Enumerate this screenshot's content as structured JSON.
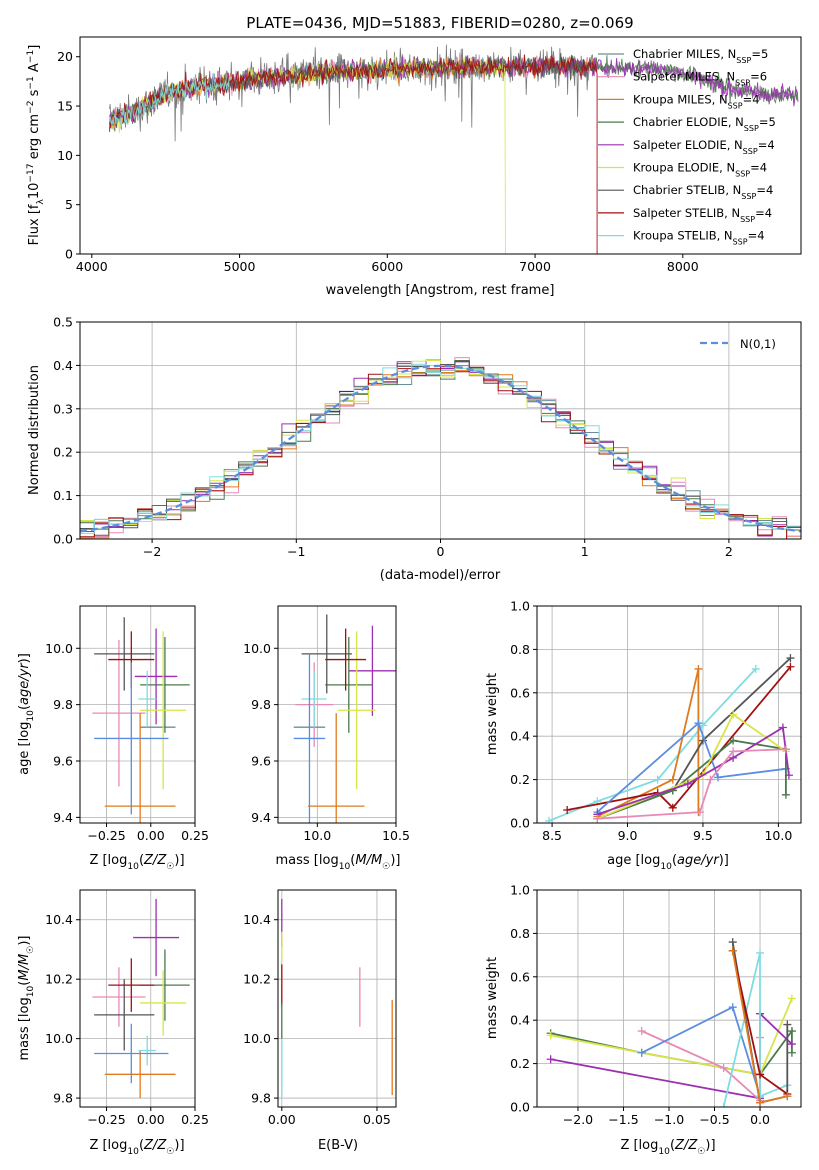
{
  "figure_title": "PLATE=0436, MJD=51883, FIBERID=0280, z=0.069",
  "colors": {
    "Chabrier MILES": "#6a8f9a",
    "Salpeter MILES": "#e88ab5",
    "Kroupa MILES": "#e07a1f",
    "Chabrier ELODIE": "#4a7a4a",
    "Salpeter ELODIE": "#9b30b0",
    "Kroupa ELODIE": "#d8e54a",
    "Chabrier STELIB": "#555555",
    "Salpeter STELIB": "#a01010",
    "Kroupa STELIB": "#7fdce0",
    "extra": "#5b8ee0",
    "normal": "#5b8ee0"
  },
  "chart_data": [
    {
      "id": "spectrum",
      "type": "line",
      "title": "PLATE=0436, MJD=51883, FIBERID=0280, z=0.069",
      "xlabel": "wavelength [Angstrom, rest frame]",
      "ylabel": "Flux [f_λ 10^-17 erg cm^-2 s^-1 A^-1]",
      "xlim": [
        3920,
        8800
      ],
      "ylim": [
        0,
        22
      ],
      "xticks": [
        4000,
        5000,
        6000,
        7000,
        8000
      ],
      "yticks": [
        0,
        5,
        10,
        15,
        20
      ],
      "legend_position": "right",
      "legend": [
        {
          "base": "Chabrier MILES",
          "n": "5"
        },
        {
          "base": "Salpeter MILES",
          "n": "6"
        },
        {
          "base": "Kroupa MILES",
          "n": "4"
        },
        {
          "base": "Chabrier ELODIE",
          "n": "5"
        },
        {
          "base": "Salpeter ELODIE",
          "n": "4"
        },
        {
          "base": "Kroupa ELODIE",
          "n": "4"
        },
        {
          "base": "Chabrier STELIB",
          "n": "4"
        },
        {
          "base": "Salpeter STELIB",
          "n": "4"
        },
        {
          "base": "Kroupa STELIB",
          "n": "4"
        }
      ],
      "continuum": {
        "x": [
          4120,
          4300,
          4500,
          4700,
          4900,
          5100,
          5300,
          5500,
          5700,
          5900,
          6100,
          6300,
          6500,
          6700,
          6900,
          7100,
          7300,
          7500,
          7700,
          7900,
          8100,
          8300,
          8500,
          8780
        ],
        "y": [
          13.5,
          14.5,
          16.3,
          17.0,
          17.3,
          17.8,
          18.0,
          18.3,
          18.5,
          18.6,
          18.8,
          18.9,
          19.0,
          19.0,
          19.0,
          19.1,
          19.0,
          18.9,
          18.9,
          18.7,
          18.0,
          16.8,
          16.3,
          16.0
        ]
      },
      "ranges": {
        "data": [
          4120,
          8780
        ],
        "Salpeter MILES cutoff": 7420,
        "Kroupa ELODIE cutoff": 6800
      }
    },
    {
      "id": "residual_hist",
      "type": "line",
      "xlabel": "(data-model)/error",
      "ylabel": "Normed distribution",
      "xlim": [
        -2.5,
        2.5
      ],
      "ylim": [
        0,
        0.5
      ],
      "xticks": [
        -2,
        -1,
        0,
        1,
        2
      ],
      "yticks": [
        0.0,
        0.1,
        0.2,
        0.3,
        0.4,
        0.5
      ],
      "grid": true,
      "legend_position": "top-right",
      "reference": {
        "name": "N(0,1)",
        "mean": 0,
        "sigma": 1
      },
      "bin_width": 0.1
    },
    {
      "id": "age_vs_Z",
      "type": "scatter",
      "xlabel": "Z [log10(Z/Z☉)]",
      "ylabel": "age [log10(age/yr)]",
      "xlim": [
        -0.4,
        0.25
      ],
      "ylim": [
        9.38,
        10.15
      ],
      "xticks": [
        -0.25,
        0.0,
        0.25
      ],
      "yticks": [
        9.4,
        9.6,
        9.8,
        10.0
      ],
      "grid": true,
      "points": [
        {
          "series": "Chabrier MILES",
          "x": 0.04,
          "y": 9.72,
          "xerr": 0.1,
          "yerr": 0.0
        },
        {
          "series": "Salpeter MILES",
          "x": -0.18,
          "y": 9.77,
          "xerr": 0.15,
          "yerr": 0.26
        },
        {
          "series": "Kroupa MILES",
          "x": -0.06,
          "y": 9.44,
          "xerr": 0.2,
          "yerr": 0.33
        },
        {
          "series": "Chabrier ELODIE",
          "x": 0.08,
          "y": 9.87,
          "xerr": 0.14,
          "yerr": 0.17
        },
        {
          "series": "Salpeter ELODIE",
          "x": 0.03,
          "y": 9.9,
          "xerr": 0.12,
          "yerr": 0.17
        },
        {
          "series": "Kroupa ELODIE",
          "x": 0.07,
          "y": 9.78,
          "xerr": 0.13,
          "yerr": 0.28
        },
        {
          "series": "Chabrier STELIB",
          "x": -0.15,
          "y": 9.98,
          "xerr": 0.17,
          "yerr": 0.13
        },
        {
          "series": "Salpeter STELIB",
          "x": -0.11,
          "y": 9.96,
          "xerr": 0.13,
          "yerr": 0.1
        },
        {
          "series": "Kroupa STELIB",
          "x": -0.02,
          "y": 9.82,
          "xerr": 0.05,
          "yerr": 0.1
        },
        {
          "series": "extra",
          "x": -0.11,
          "y": 9.68,
          "xerr": 0.21,
          "yerr": 0.27
        }
      ]
    },
    {
      "id": "age_vs_mass",
      "type": "scatter",
      "xlabel": "mass [log10(M/M☉)]",
      "ylabel": "",
      "xlim": [
        9.75,
        10.5
      ],
      "ylim": [
        9.38,
        10.15
      ],
      "xticks": [
        10.0,
        10.5
      ],
      "xticklabels": [
        "10.0",
        "10.5"
      ],
      "yticks": [
        9.4,
        9.6,
        9.8,
        10.0
      ],
      "grid": true,
      "points": [
        {
          "series": "Chabrier MILES",
          "x": 9.95,
          "y": 9.72,
          "xerr": 0.1,
          "yerr": 0.0
        },
        {
          "series": "Salpeter MILES",
          "x": 9.98,
          "y": 9.8,
          "xerr": 0.12,
          "yerr": 0.15
        },
        {
          "series": "Kroupa MILES",
          "x": 10.12,
          "y": 9.44,
          "xerr": 0.18,
          "yerr": 0.33
        },
        {
          "series": "Chabrier ELODIE",
          "x": 10.2,
          "y": 9.87,
          "xerr": 0.15,
          "yerr": 0.17
        },
        {
          "series": "Salpeter ELODIE",
          "x": 10.35,
          "y": 9.92,
          "xerr": 0.15,
          "yerr": 0.16
        },
        {
          "series": "Kroupa ELODIE",
          "x": 10.25,
          "y": 9.78,
          "xerr": 0.12,
          "yerr": 0.28
        },
        {
          "series": "Chabrier STELIB",
          "x": 10.06,
          "y": 9.98,
          "xerr": 0.16,
          "yerr": 0.14
        },
        {
          "series": "Salpeter STELIB",
          "x": 10.18,
          "y": 9.96,
          "xerr": 0.13,
          "yerr": 0.11
        },
        {
          "series": "Kroupa STELIB",
          "x": 9.98,
          "y": 9.82,
          "xerr": 0.08,
          "yerr": 0.1
        },
        {
          "series": "extra",
          "x": 9.95,
          "y": 9.68,
          "xerr": 0.1,
          "yerr": 0.3
        }
      ]
    },
    {
      "id": "mass_weight_vs_age",
      "type": "line",
      "xlabel": "age [log10(age/yr)]",
      "ylabel": "mass weight",
      "xlim": [
        8.4,
        10.15
      ],
      "ylim": [
        0,
        1
      ],
      "xticks": [
        8.5,
        9.0,
        9.5,
        10.0
      ],
      "yticks": [
        0.0,
        0.2,
        0.4,
        0.6,
        0.8,
        1.0
      ],
      "grid": true,
      "series": [
        {
          "name": "Kroupa STELIB",
          "x": [
            8.48,
            8.8,
            9.2,
            9.5,
            9.85
          ],
          "y": [
            0.01,
            0.1,
            0.2,
            0.45,
            0.71
          ]
        },
        {
          "name": "Kroupa MILES",
          "x": [
            8.8,
            9.3,
            9.47,
            9.47
          ],
          "y": [
            0.03,
            0.2,
            0.71,
            0.05
          ]
        },
        {
          "name": "Chabrier STELIB",
          "x": [
            8.8,
            9.3,
            9.5,
            10.08
          ],
          "y": [
            0.02,
            0.15,
            0.38,
            0.76
          ]
        },
        {
          "name": "Salpeter STELIB",
          "x": [
            8.6,
            9.2,
            9.3,
            10.08
          ],
          "y": [
            0.06,
            0.14,
            0.07,
            0.72
          ]
        },
        {
          "name": "extra",
          "x": [
            8.8,
            9.47,
            9.6,
            10.05
          ],
          "y": [
            0.05,
            0.46,
            0.21,
            0.25
          ]
        },
        {
          "name": "Chabrier ELODIE",
          "x": [
            8.8,
            9.3,
            9.7,
            10.05,
            10.05
          ],
          "y": [
            0.02,
            0.15,
            0.38,
            0.34,
            0.13
          ]
        },
        {
          "name": "Kroupa ELODIE",
          "x": [
            8.8,
            9.5,
            9.7,
            10.05
          ],
          "y": [
            0.02,
            0.22,
            0.5,
            0.33
          ]
        },
        {
          "name": "Salpeter ELODIE",
          "x": [
            8.8,
            9.4,
            9.7,
            10.03,
            10.07
          ],
          "y": [
            0.04,
            0.18,
            0.3,
            0.44,
            0.22
          ]
        },
        {
          "name": "Salpeter MILES",
          "x": [
            8.8,
            9.48,
            9.55,
            9.7,
            10.05
          ],
          "y": [
            0.02,
            0.05,
            0.2,
            0.33,
            0.34
          ]
        }
      ]
    },
    {
      "id": "mass_vs_Z",
      "type": "scatter",
      "xlabel": "Z [log10(Z/Z☉)]",
      "ylabel": "mass [log10(M/M☉)]",
      "xlim": [
        -0.4,
        0.25
      ],
      "ylim": [
        9.77,
        10.5
      ],
      "xticks": [
        -0.25,
        0.0,
        0.25
      ],
      "yticks": [
        9.8,
        10.0,
        10.2,
        10.4
      ],
      "grid": true,
      "points": [
        {
          "series": "Salpeter MILES",
          "x": -0.18,
          "y": 10.14,
          "xerr": 0.15,
          "yerr": 0.1
        },
        {
          "series": "Kroupa MILES",
          "x": -0.06,
          "y": 9.88,
          "xerr": 0.2,
          "yerr": 0.08
        },
        {
          "series": "Chabrier ELODIE",
          "x": 0.08,
          "y": 10.18,
          "xerr": 0.14,
          "yerr": 0.12
        },
        {
          "series": "Salpeter ELODIE",
          "x": 0.03,
          "y": 10.34,
          "xerr": 0.13,
          "yerr": 0.13
        },
        {
          "series": "Kroupa ELODIE",
          "x": 0.07,
          "y": 10.12,
          "xerr": 0.13,
          "yerr": 0.11
        },
        {
          "series": "Chabrier STELIB",
          "x": -0.15,
          "y": 10.08,
          "xerr": 0.17,
          "yerr": 0.12
        },
        {
          "series": "Salpeter STELIB",
          "x": -0.11,
          "y": 10.18,
          "xerr": 0.13,
          "yerr": 0.09
        },
        {
          "series": "Kroupa STELIB",
          "x": -0.02,
          "y": 9.96,
          "xerr": 0.05,
          "yerr": 0.05
        },
        {
          "series": "extra",
          "x": -0.11,
          "y": 9.95,
          "xerr": 0.21,
          "yerr": 0.1
        }
      ]
    },
    {
      "id": "mass_vs_EBV",
      "type": "scatter",
      "xlabel": "E(B-V)",
      "ylabel": "",
      "xlim": [
        -0.002,
        0.06
      ],
      "ylim": [
        9.77,
        10.5
      ],
      "xticks": [
        0.0,
        0.05
      ],
      "xticklabels": [
        "0.00",
        "0.05"
      ],
      "yticks": [
        9.8,
        10.0,
        10.2,
        10.4
      ],
      "grid": true,
      "points": [
        {
          "series": "Salpeter ELODIE",
          "x": 0.0,
          "y": 10.39,
          "xerr": 0.0,
          "yerr": 0.08
        },
        {
          "series": "Kroupa ELODIE",
          "x": 0.0,
          "y": 10.31,
          "xerr": 0.0,
          "yerr": 0.05
        },
        {
          "series": "Salpeter STELIB",
          "x": 0.0,
          "y": 10.18,
          "xerr": 0.0,
          "yerr": 0.07
        },
        {
          "series": "Chabrier ELODIE",
          "x": 0.0,
          "y": 10.06,
          "xerr": 0.0,
          "yerr": 0.06
        },
        {
          "series": "Kroupa STELIB",
          "x": 0.0,
          "y": 9.9,
          "xerr": 0.0,
          "yerr": 0.1
        },
        {
          "series": "Salpeter MILES",
          "x": 0.041,
          "y": 10.14,
          "xerr": 0.0,
          "yerr": 0.1
        },
        {
          "series": "Kroupa MILES",
          "x": 0.058,
          "y": 9.97,
          "xerr": 0.0,
          "yerr": 0.16
        }
      ]
    },
    {
      "id": "mass_weight_vs_Z",
      "type": "line",
      "xlabel": "Z [log10(Z/Z☉)]",
      "ylabel": "mass weight",
      "xlim": [
        -2.45,
        0.45
      ],
      "ylim": [
        0,
        1
      ],
      "xticks": [
        -2.0,
        -1.5,
        -1.0,
        -0.5,
        0.0
      ],
      "yticks": [
        0.0,
        0.2,
        0.4,
        0.6,
        0.8,
        1.0
      ],
      "grid": true,
      "series": [
        {
          "name": "Chabrier ELODIE",
          "x": [
            -2.3,
            -1.3,
            0.0,
            0.35,
            0.35
          ],
          "y": [
            0.34,
            0.25,
            0.15,
            0.35,
            0.25
          ]
        },
        {
          "name": "Kroupa ELODIE",
          "x": [
            -2.3,
            -1.3,
            0.0,
            0.35
          ],
          "y": [
            0.33,
            0.25,
            0.15,
            0.5
          ]
        },
        {
          "name": "Salpeter ELODIE",
          "x": [
            -2.3,
            0.0,
            0.0,
            0.35
          ],
          "y": [
            0.22,
            0.04,
            0.43,
            0.29
          ]
        },
        {
          "name": "Salpeter MILES",
          "x": [
            -1.3,
            -0.4,
            0.0,
            0.0
          ],
          "y": [
            0.35,
            0.18,
            0.03,
            0.32
          ]
        },
        {
          "name": "extra",
          "x": [
            -1.3,
            -0.3,
            0.0
          ],
          "y": [
            0.25,
            0.46,
            0.05
          ]
        },
        {
          "name": "Kroupa STELIB",
          "x": [
            -0.4,
            0.0,
            0.0,
            0.3
          ],
          "y": [
            0.0,
            0.71,
            0.05,
            0.1
          ]
        },
        {
          "name": "Chabrier STELIB",
          "x": [
            -0.3,
            0.0,
            0.3,
            0.3
          ],
          "y": [
            0.76,
            0.02,
            0.05,
            0.38
          ]
        },
        {
          "name": "Salpeter STELIB",
          "x": [
            -0.3,
            0.0,
            0.3
          ],
          "y": [
            0.72,
            0.15,
            0.06
          ]
        },
        {
          "name": "Kroupa MILES",
          "x": [
            -0.3,
            0.0,
            0.3
          ],
          "y": [
            0.72,
            0.02,
            0.05
          ]
        }
      ]
    }
  ]
}
